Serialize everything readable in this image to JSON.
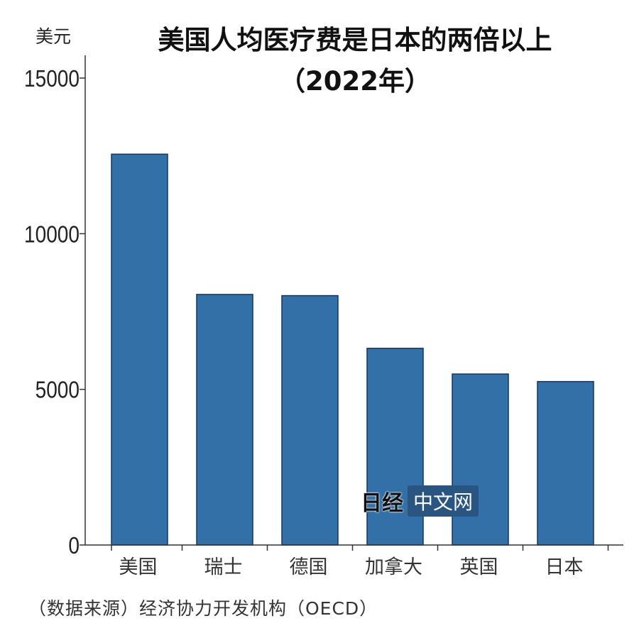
{
  "chart_data": {
    "type": "bar",
    "title": "美国人均医疗费是日本的两倍以上",
    "subtitle": "（2022年）",
    "ylabel": "美元",
    "xlabel": "",
    "categories": [
      "美国",
      "瑞士",
      "德国",
      "加拿大",
      "英国",
      "日本"
    ],
    "values": [
      12555,
      8049,
      8011,
      6319,
      5493,
      5251
    ],
    "ylim": [
      0,
      15000
    ],
    "yticks": [
      0,
      5000,
      10000,
      15000
    ],
    "ytick_labels": [
      "0",
      "5000",
      "10000",
      "15000"
    ],
    "grid": false,
    "bar_color": "#3470a8",
    "source": "（数据来源）经济协力开发机构（OECD）"
  },
  "watermark": {
    "logo": "日经",
    "text": "中文网"
  }
}
